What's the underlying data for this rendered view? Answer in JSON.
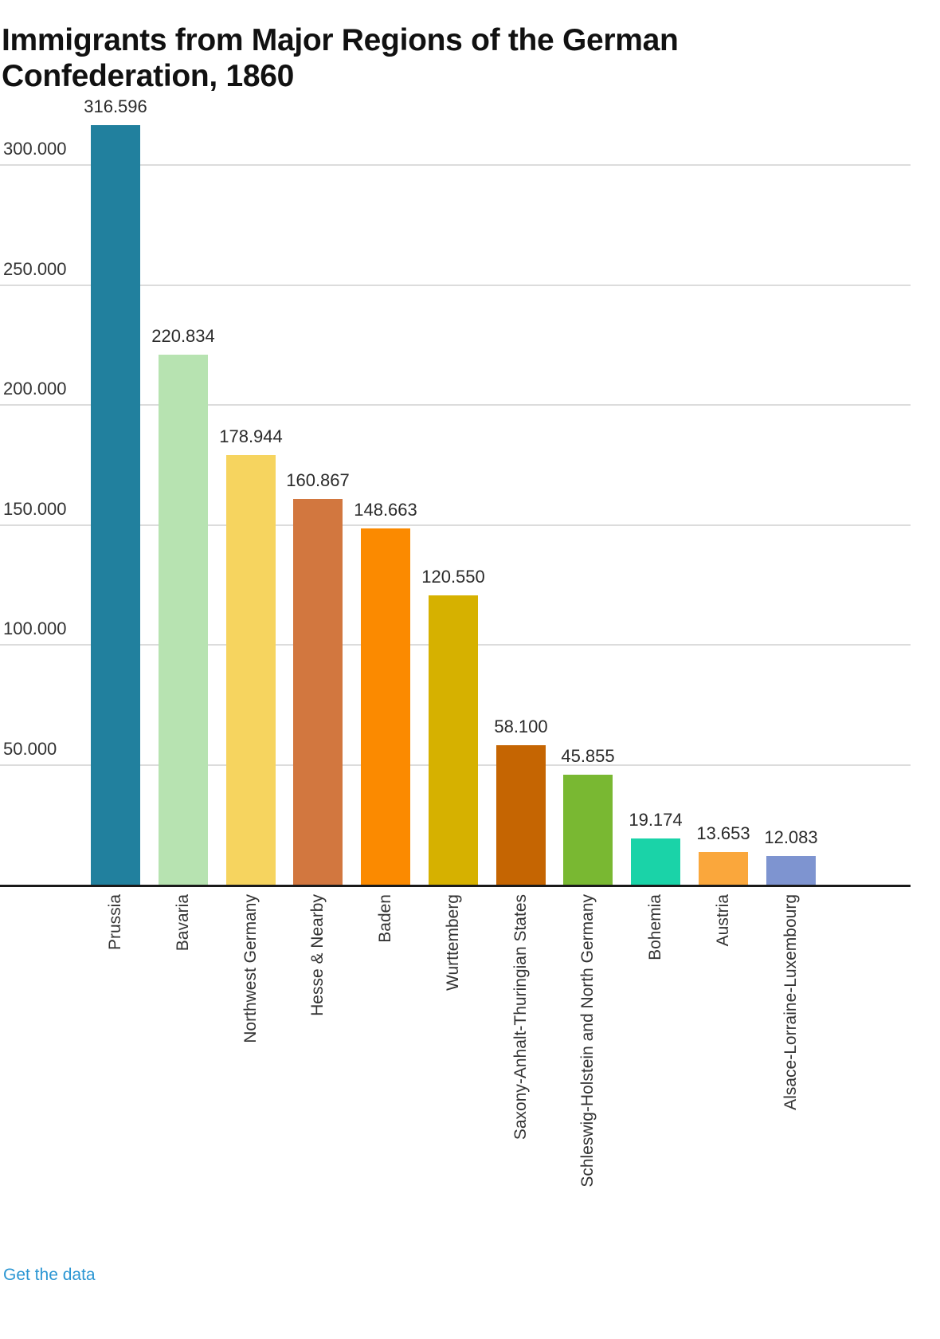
{
  "title": "Immigrants from Major Regions of the German Confederation, 1860",
  "footer": {
    "get_data_label": "Get the data",
    "link_color": "#2b96d3"
  },
  "chart_data": {
    "type": "bar",
    "title": "Immigrants from Major Regions of the German Confederation, 1860",
    "xlabel": "",
    "ylabel": "",
    "ylim": [
      0,
      330000
    ],
    "y_tick_interval": 50000,
    "y_tick_labels": [
      "50.000",
      "100.000",
      "150.000",
      "200.000",
      "250.000",
      "300.000"
    ],
    "grid": "horizontal",
    "legend": "none",
    "categories": [
      "Prussia",
      "Bavaria",
      "Northwest Germany",
      "Hesse & Nearby",
      "Baden",
      "Wurttemberg",
      "Saxony-Anhalt-Thuringian States",
      "Schleswig-Holstein and North Germany",
      "Bohemia",
      "Austria",
      "Alsace-Lorraine-Luxembourg"
    ],
    "values": [
      316596,
      220834,
      178944,
      160867,
      148663,
      120550,
      58100,
      45855,
      19174,
      13653,
      12083
    ],
    "value_labels": [
      "316.596",
      "220.834",
      "178.944",
      "160.867",
      "148.663",
      "120.550",
      "58.100",
      "45.855",
      "19.174",
      "13.653",
      "12.083"
    ],
    "bar_colors": [
      "#21809E",
      "#B7E3B1",
      "#F6D45F",
      "#D2773F",
      "#FB8A00",
      "#D6B100",
      "#C56502",
      "#79B832",
      "#1AD3A8",
      "#FAA73C",
      "#7E94D0"
    ],
    "gridline_color": "#dcdcdc",
    "axis_color": "#1a1a1a",
    "label_color": "#333333"
  }
}
